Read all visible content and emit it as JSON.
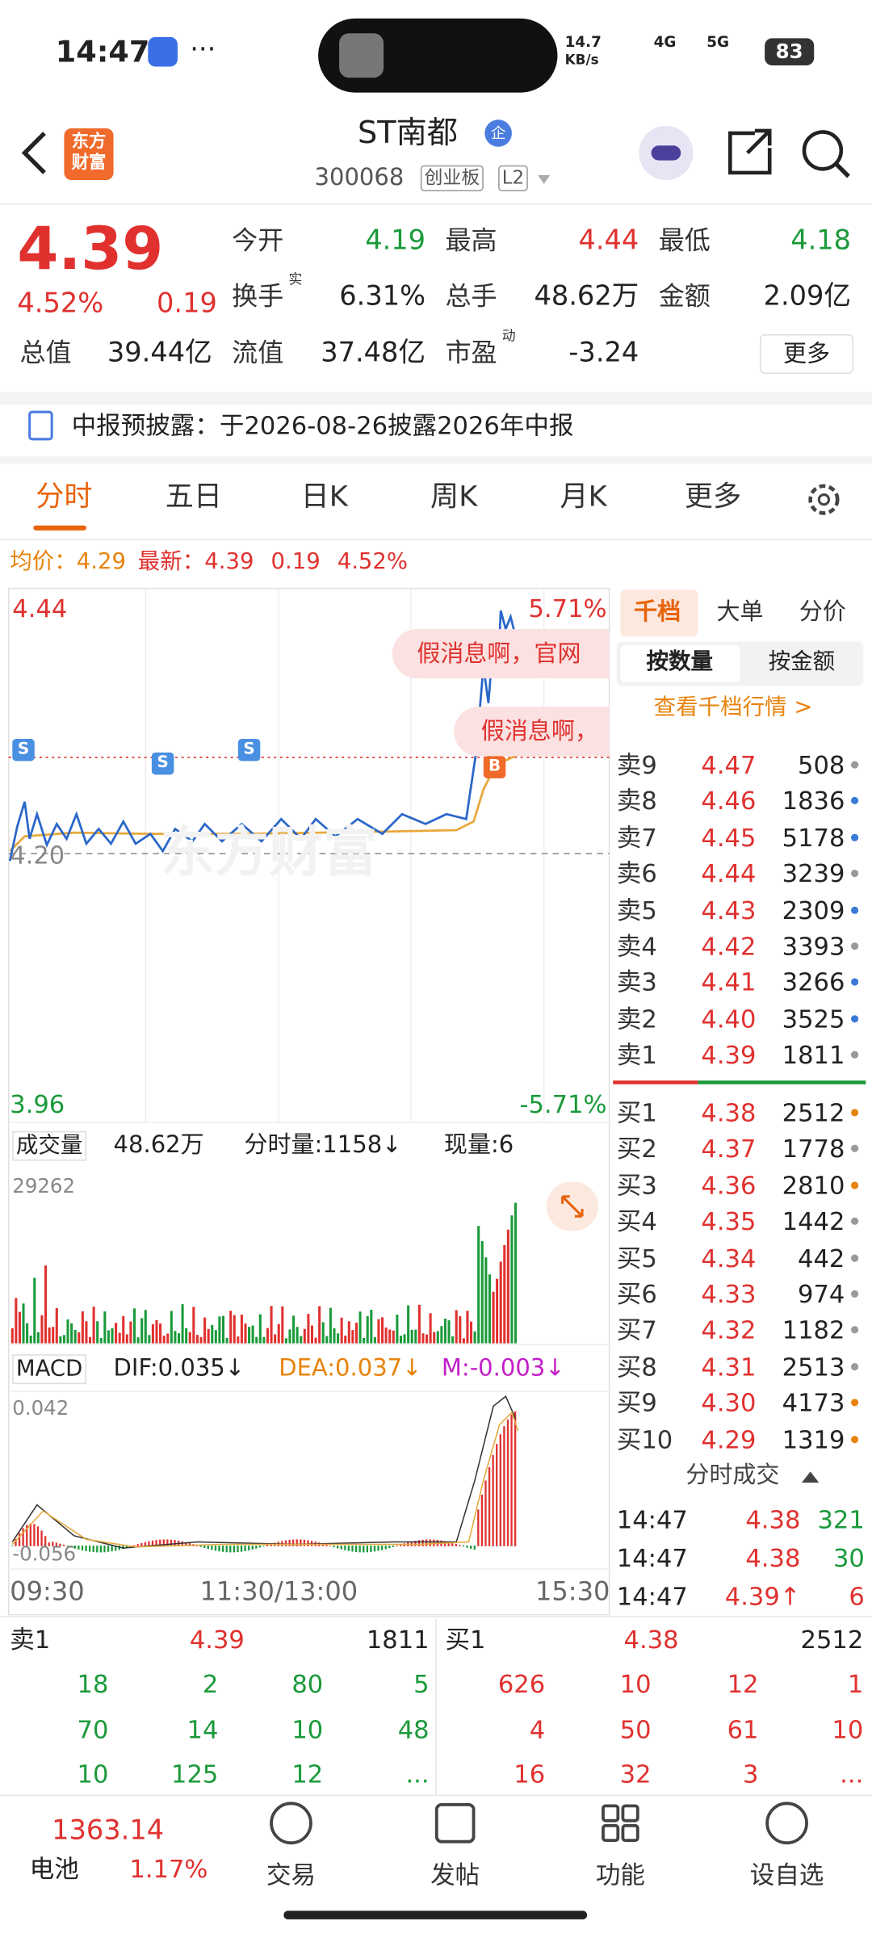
{
  "status": {
    "time": "14:47",
    "speed": "14.7",
    "speed_unit": "KB/s",
    "net1": "4G",
    "net2": "5G",
    "battery": "83"
  },
  "header": {
    "logo": [
      "东方",
      "财富"
    ],
    "title": "ST南都",
    "badge": "企",
    "code": "300068",
    "board": "创业板",
    "level": "L2"
  },
  "quote": {
    "price": "4.39",
    "percent": "4.52%",
    "change": "0.19",
    "more": "更多",
    "fields": [
      {
        "label": "今开",
        "value": "4.19",
        "color": "#1a9a3a"
      },
      {
        "label": "最高",
        "value": "4.44",
        "color": "#e0312f"
      },
      {
        "label": "最低",
        "value": "4.18",
        "color": "#1a9a3a"
      },
      {
        "label": "换手",
        "sup": "实",
        "value": "6.31%",
        "color": "#222"
      },
      {
        "label": "总手",
        "value": "48.62万",
        "color": "#222"
      },
      {
        "label": "金额",
        "value": "2.09亿",
        "color": "#222"
      },
      {
        "label": "总值",
        "value": "39.44亿",
        "color": "#222"
      },
      {
        "label": "流值",
        "value": "37.48亿",
        "color": "#222"
      },
      {
        "label": "市盈",
        "sup": "动",
        "value": "-3.24",
        "color": "#222"
      }
    ]
  },
  "notice": "中报预披露：于2026-08-26披露2026年中报",
  "tabs": [
    "分时",
    "五日",
    "日K",
    "周K",
    "月K",
    "更多"
  ],
  "info": {
    "avg_label": "均价：",
    "avg": "4.29",
    "last_label": "最新：",
    "last": "4.39",
    "change": "0.19",
    "percent": "4.52%"
  },
  "chart": {
    "high": "4.44",
    "high_pct": "5.71%",
    "low": "3.96",
    "low_pct": "-5.71%",
    "prev_close": "4.20",
    "comments": [
      "假消息啊，官网",
      "假消息啊，"
    ],
    "markers": [
      "S",
      "S",
      "S",
      "B"
    ],
    "watermark": "东方财富"
  },
  "volume": {
    "label": "成交量",
    "total": "48.62万",
    "tick": "分时量:1158↓",
    "current": "现量:6",
    "max": "29262"
  },
  "macd": {
    "label": "MACD",
    "dif": "DIF:0.035↓",
    "dea": "DEA:0.037↓",
    "m": "M:-0.003↓",
    "max": "0.042",
    "min": "-0.056"
  },
  "time_axis": [
    "09:30",
    "11:30/13:00",
    "15:30"
  ],
  "book": {
    "tabs": [
      "千档",
      "大单",
      "分价"
    ],
    "subtabs": [
      "按数量",
      "按金额"
    ],
    "link": "查看千档行情 >",
    "sells": [
      {
        "label": "卖9",
        "price": "4.47",
        "qty": "508",
        "dot": "#999"
      },
      {
        "label": "卖8",
        "price": "4.46",
        "qty": "1836",
        "dot": "#3a7bd5"
      },
      {
        "label": "卖7",
        "price": "4.45",
        "qty": "5178",
        "dot": "#3a7bd5"
      },
      {
        "label": "卖6",
        "price": "4.44",
        "qty": "3239",
        "dot": "#999"
      },
      {
        "label": "卖5",
        "price": "4.43",
        "qty": "2309",
        "dot": "#3a7bd5"
      },
      {
        "label": "卖4",
        "price": "4.42",
        "qty": "3393",
        "dot": "#999"
      },
      {
        "label": "卖3",
        "price": "4.41",
        "qty": "3266",
        "dot": "#3a7bd5"
      },
      {
        "label": "卖2",
        "price": "4.40",
        "qty": "3525",
        "dot": "#3a7bd5"
      },
      {
        "label": "卖1",
        "price": "4.39",
        "qty": "1811",
        "dot": "#999"
      }
    ],
    "buys": [
      {
        "label": "买1",
        "price": "4.38",
        "qty": "2512",
        "dot": "#e8830c"
      },
      {
        "label": "买2",
        "price": "4.37",
        "qty": "1778",
        "dot": "#999"
      },
      {
        "label": "买3",
        "price": "4.36",
        "qty": "2810",
        "dot": "#e8830c"
      },
      {
        "label": "买4",
        "price": "4.35",
        "qty": "1442",
        "dot": "#999"
      },
      {
        "label": "买5",
        "price": "4.34",
        "qty": "442",
        "dot": "#999"
      },
      {
        "label": "买6",
        "price": "4.33",
        "qty": "974",
        "dot": "#999"
      },
      {
        "label": "买7",
        "price": "4.32",
        "qty": "1182",
        "dot": "#999"
      },
      {
        "label": "买8",
        "price": "4.31",
        "qty": "2513",
        "dot": "#999"
      },
      {
        "label": "买9",
        "price": "4.30",
        "qty": "4173",
        "dot": "#e8830c"
      },
      {
        "label": "买10",
        "price": "4.29",
        "qty": "1319",
        "dot": "#e8830c"
      }
    ],
    "trades_title": "分时成交",
    "trades": [
      {
        "time": "14:47",
        "price": "4.38",
        "qty": "321"
      },
      {
        "time": "14:47",
        "price": "4.38",
        "qty": "30"
      },
      {
        "time": "14:47",
        "price": "4.39↑",
        "qty": "6"
      }
    ]
  },
  "queue": {
    "sell": {
      "label": "卖1",
      "price": "4.39",
      "qty": "1811",
      "rows": [
        [
          "18",
          "2",
          "80",
          "5"
        ],
        [
          "70",
          "14",
          "10",
          "48"
        ],
        [
          "10",
          "125",
          "12",
          "..."
        ]
      ]
    },
    "buy": {
      "label": "买1",
      "price": "4.38",
      "qty": "2512",
      "rows": [
        [
          "626",
          "10",
          "12",
          "1"
        ],
        [
          "4",
          "50",
          "61",
          "10"
        ],
        [
          "16",
          "32",
          "3",
          "..."
        ]
      ]
    }
  },
  "nav": {
    "index": "1363.14",
    "index_name": "电池",
    "index_pct": "1.17%",
    "items": [
      "交易",
      "发帖",
      "功能",
      "设自选"
    ]
  }
}
